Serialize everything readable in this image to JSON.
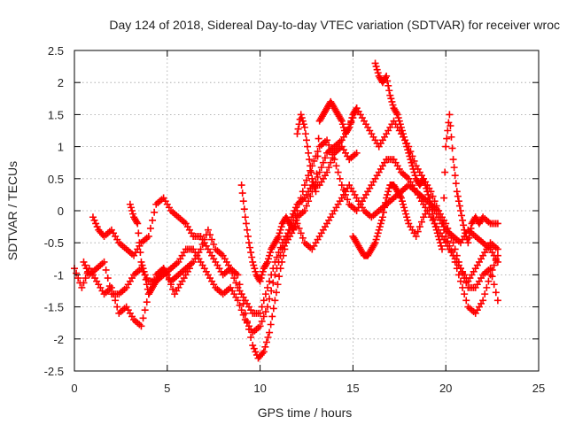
{
  "chart_data": {
    "type": "scatter",
    "title": "Day 124 of 2018, Sidereal Day-to-day VTEC variation (SDTVAR) for receiver wroc",
    "xlabel": "GPS time / hours",
    "ylabel": "SDTVAR / TECUs",
    "xlim": [
      0,
      25
    ],
    "ylim": [
      -2.5,
      2.5
    ],
    "x_ticks": [
      "0",
      "5",
      "10",
      "15",
      "20",
      "25"
    ],
    "y_ticks": [
      "-2.5",
      "-2",
      "-1.5",
      "-1",
      "-0.5",
      "0",
      "0.5",
      "1",
      "1.5",
      "2",
      "2.5"
    ],
    "grid": true,
    "marker": "+",
    "marker_color": "#ff0000",
    "series": [
      {
        "name": "track-1",
        "points": [
          [
            0.0,
            -0.9
          ],
          [
            0.4,
            -1.2
          ],
          [
            0.8,
            -0.9
          ],
          [
            1.2,
            -1.1
          ],
          [
            1.6,
            -1.3
          ],
          [
            2.0,
            -1.2
          ],
          [
            2.4,
            -1.6
          ],
          [
            2.8,
            -1.5
          ],
          [
            3.2,
            -1.7
          ],
          [
            3.6,
            -1.8
          ],
          [
            4.0,
            -1.3
          ],
          [
            4.4,
            -1.0
          ],
          [
            4.8,
            -0.9
          ],
          [
            5.2,
            -1.1
          ],
          [
            5.6,
            -1.0
          ],
          [
            6.0,
            -0.9
          ],
          [
            6.4,
            -0.8
          ],
          [
            6.8,
            -0.6
          ],
          [
            7.2,
            -0.3
          ],
          [
            7.6,
            -0.6
          ],
          [
            8.0,
            -0.7
          ],
          [
            8.4,
            -0.9
          ],
          [
            8.8,
            -1.0
          ],
          [
            9.2,
            -1.6
          ],
          [
            9.6,
            -2.1
          ],
          [
            9.9,
            -2.3
          ],
          [
            10.2,
            -2.2
          ],
          [
            10.5,
            -1.9
          ],
          [
            10.8,
            -1.4
          ],
          [
            11.1,
            -0.9
          ],
          [
            11.4,
            -0.5
          ],
          [
            11.7,
            -0.1
          ],
          [
            12.0,
            0.1
          ],
          [
            12.4,
            0.2
          ],
          [
            12.8,
            0.4
          ],
          [
            13.2,
            0.4
          ],
          [
            13.6,
            0.6
          ],
          [
            14.0,
            0.9
          ],
          [
            14.4,
            1.0
          ],
          [
            14.8,
            0.8
          ],
          [
            15.2,
            0.9
          ]
        ]
      },
      {
        "name": "track-2",
        "points": [
          [
            0.5,
            -0.8
          ],
          [
            0.8,
            -1.0
          ],
          [
            1.2,
            -0.9
          ],
          [
            1.6,
            -0.8
          ],
          [
            2.0,
            -1.3
          ],
          [
            2.4,
            -1.3
          ],
          [
            2.8,
            -1.2
          ],
          [
            3.2,
            -1.0
          ],
          [
            3.6,
            -0.9
          ],
          [
            4.0,
            -1.1
          ],
          [
            4.4,
            -1.1
          ],
          [
            4.8,
            -1.0
          ],
          [
            5.2,
            -0.9
          ],
          [
            5.6,
            -0.8
          ],
          [
            6.0,
            -0.6
          ],
          [
            6.4,
            -0.6
          ],
          [
            6.8,
            -0.8
          ],
          [
            7.2,
            -1.0
          ],
          [
            7.6,
            -1.2
          ],
          [
            8.0,
            -1.3
          ],
          [
            8.4,
            -1.2
          ],
          [
            8.8,
            -1.4
          ],
          [
            9.2,
            -1.7
          ],
          [
            9.6,
            -1.9
          ],
          [
            10.0,
            -1.8
          ],
          [
            10.4,
            -1.5
          ],
          [
            10.8,
            -1.0
          ],
          [
            11.2,
            -0.6
          ],
          [
            11.6,
            -0.4
          ],
          [
            12.0,
            -0.2
          ],
          [
            12.4,
            -0.5
          ],
          [
            12.8,
            -0.6
          ],
          [
            13.2,
            -0.4
          ],
          [
            13.6,
            -0.2
          ],
          [
            14.0,
            0.0
          ],
          [
            14.4,
            0.2
          ],
          [
            14.8,
            0.4
          ],
          [
            15.2,
            0.2
          ],
          [
            15.6,
            0.0
          ],
          [
            16.0,
            -0.1
          ],
          [
            16.4,
            0.0
          ],
          [
            16.8,
            0.1
          ],
          [
            17.2,
            0.2
          ],
          [
            17.6,
            0.3
          ],
          [
            18.0,
            0.4
          ],
          [
            18.4,
            0.3
          ],
          [
            18.8,
            0.2
          ],
          [
            19.2,
            0.1
          ],
          [
            19.6,
            0.0
          ],
          [
            20.0,
            -0.2
          ],
          [
            20.4,
            -0.5
          ],
          [
            20.8,
            -0.9
          ],
          [
            21.2,
            -1.1
          ],
          [
            21.6,
            -0.9
          ],
          [
            22.0,
            -0.7
          ],
          [
            22.4,
            -0.5
          ],
          [
            22.8,
            -0.6
          ]
        ]
      },
      {
        "name": "track-3",
        "points": [
          [
            1.0,
            -0.1
          ],
          [
            1.3,
            -0.3
          ],
          [
            1.6,
            -0.4
          ],
          [
            2.0,
            -0.3
          ],
          [
            2.4,
            -0.5
          ],
          [
            2.8,
            -0.6
          ],
          [
            3.2,
            -0.7
          ],
          [
            3.6,
            -0.5
          ],
          [
            4.0,
            -0.4
          ],
          [
            4.4,
            0.1
          ],
          [
            4.8,
            0.2
          ],
          [
            5.2,
            0.0
          ],
          [
            5.6,
            -0.1
          ],
          [
            6.0,
            -0.2
          ],
          [
            6.4,
            -0.4
          ],
          [
            6.8,
            -0.4
          ],
          [
            7.2,
            -0.6
          ],
          [
            7.6,
            -0.8
          ],
          [
            8.0,
            -1.0
          ],
          [
            8.4,
            -0.9
          ],
          [
            8.8,
            -1.2
          ],
          [
            9.2,
            -1.4
          ],
          [
            9.6,
            -1.6
          ],
          [
            10.0,
            -1.6
          ],
          [
            10.4,
            -1.2
          ],
          [
            10.8,
            -0.8
          ],
          [
            11.2,
            -0.5
          ],
          [
            11.6,
            -0.3
          ],
          [
            12.0,
            0.0
          ],
          [
            12.4,
            0.4
          ],
          [
            12.8,
            0.7
          ],
          [
            13.2,
            1.0
          ],
          [
            13.6,
            1.1
          ],
          [
            14.0,
            0.8
          ],
          [
            14.4,
            0.4
          ],
          [
            14.8,
            0.1
          ],
          [
            15.2,
            0.0
          ],
          [
            15.6,
            0.2
          ],
          [
            16.0,
            0.4
          ],
          [
            16.4,
            0.6
          ],
          [
            16.8,
            0.8
          ],
          [
            17.2,
            0.8
          ],
          [
            17.6,
            0.6
          ],
          [
            18.0,
            0.5
          ],
          [
            18.4,
            0.3
          ],
          [
            18.8,
            0.1
          ],
          [
            19.2,
            -0.1
          ],
          [
            19.6,
            -0.3
          ],
          [
            20.0,
            -0.5
          ],
          [
            20.4,
            -0.7
          ],
          [
            20.8,
            -1.1
          ],
          [
            21.2,
            -1.5
          ],
          [
            21.6,
            -1.6
          ],
          [
            22.0,
            -1.4
          ],
          [
            22.4,
            -1.0
          ],
          [
            22.8,
            -0.7
          ]
        ]
      },
      {
        "name": "track-4",
        "points": [
          [
            9.0,
            0.4
          ],
          [
            9.2,
            -0.1
          ],
          [
            9.4,
            -0.5
          ],
          [
            9.6,
            -0.8
          ],
          [
            9.8,
            -1.0
          ],
          [
            10.0,
            -1.1
          ],
          [
            10.2,
            -0.9
          ],
          [
            10.4,
            -0.8
          ],
          [
            10.6,
            -0.6
          ],
          [
            10.8,
            -0.5
          ],
          [
            11.0,
            -0.4
          ],
          [
            11.2,
            -0.2
          ],
          [
            11.4,
            -0.1
          ],
          [
            11.6,
            -0.2
          ],
          [
            11.8,
            -0.3
          ],
          [
            12.0,
            -0.1
          ],
          [
            12.4,
            0.0
          ],
          [
            12.8,
            0.3
          ],
          [
            13.2,
            0.6
          ],
          [
            13.6,
            0.9
          ],
          [
            14.0,
            1.0
          ],
          [
            14.4,
            1.1
          ],
          [
            14.8,
            1.3
          ],
          [
            15.2,
            1.6
          ],
          [
            15.6,
            1.4
          ],
          [
            16.0,
            1.2
          ],
          [
            16.4,
            1.0
          ],
          [
            16.8,
            1.2
          ],
          [
            17.2,
            1.4
          ],
          [
            17.6,
            1.2
          ],
          [
            18.0,
            1.0
          ],
          [
            18.4,
            0.7
          ],
          [
            18.8,
            0.5
          ],
          [
            19.2,
            0.3
          ],
          [
            19.6,
            0.0
          ],
          [
            20.0,
            -0.4
          ],
          [
            20.4,
            -0.7
          ],
          [
            20.8,
            -0.9
          ],
          [
            21.2,
            -1.2
          ],
          [
            21.6,
            -1.2
          ],
          [
            22.0,
            -1.0
          ],
          [
            22.4,
            -0.9
          ],
          [
            22.8,
            -1.4
          ]
        ]
      },
      {
        "name": "track-5",
        "points": [
          [
            12.0,
            1.2
          ],
          [
            12.2,
            1.5
          ],
          [
            12.4,
            1.3
          ],
          [
            12.6,
            0.9
          ],
          [
            12.8,
            0.5
          ],
          [
            13.0,
            0.3
          ],
          [
            13.2,
            1.4
          ],
          [
            13.4,
            1.5
          ],
          [
            13.6,
            1.6
          ],
          [
            13.8,
            1.7
          ],
          [
            14.0,
            1.6
          ],
          [
            14.2,
            1.5
          ],
          [
            14.4,
            1.4
          ],
          [
            14.6,
            1.2
          ],
          [
            14.8,
            1.3
          ],
          [
            15.0,
            1.5
          ],
          [
            15.2,
            1.6
          ]
        ]
      },
      {
        "name": "track-6",
        "points": [
          [
            16.2,
            2.3
          ],
          [
            16.4,
            2.1
          ],
          [
            16.6,
            2.0
          ],
          [
            16.8,
            2.1
          ],
          [
            17.0,
            1.8
          ],
          [
            17.2,
            1.6
          ],
          [
            17.4,
            1.5
          ],
          [
            17.6,
            1.3
          ],
          [
            17.8,
            1.1
          ],
          [
            18.0,
            0.9
          ],
          [
            18.2,
            0.7
          ],
          [
            18.4,
            0.5
          ],
          [
            18.6,
            0.4
          ],
          [
            18.8,
            0.5
          ],
          [
            19.0,
            0.3
          ],
          [
            19.2,
            0.1
          ],
          [
            19.4,
            -0.2
          ],
          [
            19.6,
            -0.4
          ],
          [
            19.8,
            -0.6
          ],
          [
            20.0,
            1.0
          ],
          [
            20.2,
            1.5
          ],
          [
            20.4,
            0.8
          ],
          [
            20.6,
            0.3
          ],
          [
            20.8,
            0.0
          ],
          [
            21.0,
            -0.3
          ],
          [
            21.2,
            -0.5
          ],
          [
            21.4,
            -0.2
          ],
          [
            21.6,
            -0.1
          ],
          [
            21.8,
            -0.2
          ],
          [
            22.0,
            -0.1
          ],
          [
            22.4,
            -0.2
          ],
          [
            22.8,
            -0.2
          ]
        ]
      },
      {
        "name": "track-7",
        "points": [
          [
            15.0,
            -0.4
          ],
          [
            15.2,
            -0.5
          ],
          [
            15.4,
            -0.6
          ],
          [
            15.6,
            -0.7
          ],
          [
            15.8,
            -0.7
          ],
          [
            16.0,
            -0.6
          ],
          [
            16.2,
            -0.5
          ],
          [
            16.4,
            -0.3
          ],
          [
            16.6,
            -0.1
          ],
          [
            16.8,
            0.2
          ],
          [
            17.0,
            0.4
          ],
          [
            17.2,
            0.4
          ],
          [
            17.4,
            0.3
          ],
          [
            17.6,
            0.2
          ],
          [
            17.8,
            0.0
          ],
          [
            18.0,
            -0.2
          ],
          [
            18.4,
            -0.4
          ],
          [
            18.8,
            -0.1
          ],
          [
            19.2,
            0.1
          ],
          [
            19.6,
            -0.1
          ],
          [
            20.0,
            -0.3
          ],
          [
            20.4,
            -0.4
          ],
          [
            20.8,
            -0.5
          ],
          [
            21.2,
            -0.3
          ],
          [
            21.6,
            -0.4
          ],
          [
            22.0,
            -0.5
          ],
          [
            22.4,
            -0.6
          ],
          [
            22.8,
            -0.8
          ]
        ]
      },
      {
        "name": "track-8",
        "points": [
          [
            3.0,
            0.1
          ],
          [
            3.2,
            -0.1
          ],
          [
            3.4,
            -0.2
          ],
          [
            3.6,
            -0.8
          ],
          [
            3.8,
            -1.0
          ],
          [
            4.0,
            -1.3
          ],
          [
            4.2,
            -1.2
          ],
          [
            4.4,
            -1.1
          ],
          [
            4.6,
            -1.0
          ],
          [
            4.8,
            -0.9
          ],
          [
            5.0,
            -1.0
          ],
          [
            5.4,
            -1.3
          ],
          [
            5.8,
            -1.1
          ],
          [
            6.2,
            -0.9
          ]
        ]
      }
    ]
  }
}
